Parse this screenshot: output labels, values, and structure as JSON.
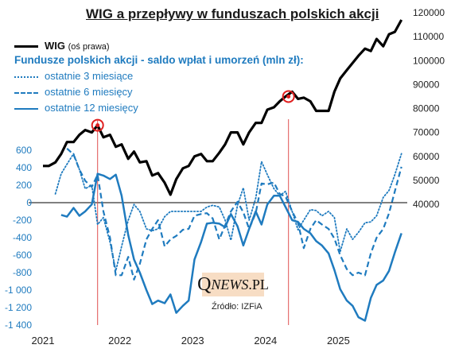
{
  "title": "WIG a przepływy w funduszach polskich akcji",
  "legend": {
    "wig_name": "WIG",
    "wig_note": "(oś prawa)",
    "funds_title": "Fundusze polskich akcji - saldo wpłat i umorzeń (mln zł):",
    "s3m": "ostatnie 3 miesiące",
    "s6m": "ostatnie 6 miesięcy",
    "s12m": "ostatnie 12 miesięcy"
  },
  "watermark": {
    "q": "Q",
    "news": "NEWS",
    "pl": ".PL"
  },
  "source": "Źródło: IZFiA",
  "colors": {
    "wig": "#000000",
    "funds": "#1f7bbf",
    "marker": "#e02020",
    "vline": "#e05050"
  },
  "chart_data": {
    "type": "line",
    "x_ticks": [
      "2021",
      "2022",
      "2023",
      "2024",
      "2025"
    ],
    "x_tick_positions": [
      2021.0,
      2022.0,
      2023.0,
      2024.0,
      2025.0
    ],
    "xlim": [
      2021.0,
      2026.0
    ],
    "y_left": {
      "ticks": [
        "600",
        "400",
        "200",
        "0",
        "-200",
        "-400",
        "-600",
        "-800",
        "-1 000",
        "-1 200",
        "-1 400"
      ],
      "ylim": [
        -1400,
        600
      ]
    },
    "y_right": {
      "ticks": [
        "120000",
        "110000",
        "100000",
        "90000",
        "80000",
        "70000",
        "60000",
        "50000",
        "40000"
      ],
      "ylim": [
        40000,
        120000
      ]
    },
    "vertical_markers_x": [
      2021.75,
      2024.37
    ],
    "series": [
      {
        "name": "WIG",
        "axis": "right",
        "style": "solid-black",
        "x": [
          2021.0,
          2021.08,
          2021.17,
          2021.25,
          2021.33,
          2021.42,
          2021.5,
          2021.58,
          2021.67,
          2021.75,
          2021.83,
          2021.92,
          2022.0,
          2022.08,
          2022.17,
          2022.25,
          2022.33,
          2022.42,
          2022.5,
          2022.58,
          2022.67,
          2022.75,
          2022.83,
          2022.92,
          2023.0,
          2023.08,
          2023.17,
          2023.25,
          2023.33,
          2023.42,
          2023.5,
          2023.58,
          2023.67,
          2023.75,
          2023.83,
          2023.92,
          2024.0,
          2024.08,
          2024.17,
          2024.25,
          2024.33,
          2024.42,
          2024.5,
          2024.58,
          2024.67,
          2024.75,
          2024.83,
          2024.92,
          2025.0,
          2025.08,
          2025.17,
          2025.25,
          2025.33,
          2025.42,
          2025.5,
          2025.58,
          2025.67,
          2025.75,
          2025.83,
          2025.92
        ],
        "values": [
          56000,
          56000,
          57500,
          61000,
          66000,
          66000,
          69000,
          71000,
          70000,
          73000,
          68000,
          69000,
          64000,
          65000,
          59000,
          62000,
          57500,
          58000,
          52000,
          53000,
          49000,
          44000,
          50500,
          55000,
          56000,
          60000,
          61000,
          58000,
          58000,
          61500,
          65000,
          70000,
          70000,
          65000,
          70000,
          74000,
          74000,
          79500,
          80500,
          83000,
          85000,
          87000,
          84000,
          84500,
          83000,
          79000,
          79000,
          79000,
          87000,
          92500,
          96000,
          99000,
          102000,
          105000,
          104000,
          109000,
          106000,
          111000,
          112000,
          117000
        ]
      },
      {
        "name": "ostatnie 3 miesiące",
        "axis": "left",
        "style": "dotted",
        "x": [
          2021.17,
          2021.25,
          2021.33,
          2021.42,
          2021.5,
          2021.58,
          2021.67,
          2021.75,
          2021.83,
          2021.92,
          2022.0,
          2022.08,
          2022.17,
          2022.25,
          2022.33,
          2022.42,
          2022.5,
          2022.58,
          2022.67,
          2022.75,
          2022.83,
          2022.92,
          2023.0,
          2023.08,
          2023.17,
          2023.25,
          2023.33,
          2023.42,
          2023.5,
          2023.58,
          2023.67,
          2023.75,
          2023.83,
          2023.92,
          2024.0,
          2024.08,
          2024.17,
          2024.25,
          2024.33,
          2024.42,
          2024.5,
          2024.58,
          2024.67,
          2024.75,
          2024.83,
          2024.92,
          2025.0,
          2025.08,
          2025.17,
          2025.25,
          2025.33,
          2025.42,
          2025.5,
          2025.58,
          2025.67,
          2025.75,
          2025.83,
          2025.92
        ],
        "values": [
          100,
          330,
          440,
          560,
          380,
          160,
          200,
          -250,
          -170,
          -450,
          -780,
          -500,
          -200,
          -20,
          -100,
          -300,
          -320,
          -300,
          -160,
          -100,
          -100,
          -100,
          -100,
          -100,
          -100,
          -50,
          -30,
          -50,
          -200,
          -430,
          -30,
          170,
          -200,
          50,
          470,
          320,
          160,
          80,
          130,
          -100,
          -310,
          -200,
          -80,
          -90,
          -150,
          -100,
          -170,
          -560,
          -300,
          -420,
          -340,
          -230,
          -220,
          -150,
          60,
          140,
          320,
          560
        ]
      },
      {
        "name": "ostatnie 6 miesięcy",
        "axis": "left",
        "style": "dashed",
        "x": [
          2021.33,
          2021.42,
          2021.5,
          2021.58,
          2021.67,
          2021.75,
          2021.83,
          2021.92,
          2022.0,
          2022.08,
          2022.17,
          2022.25,
          2022.33,
          2022.42,
          2022.5,
          2022.58,
          2022.67,
          2022.75,
          2022.83,
          2022.92,
          2023.0,
          2023.08,
          2023.17,
          2023.25,
          2023.33,
          2023.42,
          2023.5,
          2023.58,
          2023.67,
          2023.75,
          2023.83,
          2023.92,
          2024.0,
          2024.08,
          2024.17,
          2024.25,
          2024.33,
          2024.42,
          2024.5,
          2024.58,
          2024.67,
          2024.75,
          2024.83,
          2024.92,
          2025.0,
          2025.08,
          2025.17,
          2025.25,
          2025.33,
          2025.42,
          2025.5,
          2025.58,
          2025.67,
          2025.75,
          2025.83,
          2025.92
        ],
        "values": [
          620,
          550,
          380,
          250,
          180,
          320,
          -100,
          -400,
          -830,
          -830,
          -620,
          -880,
          -700,
          -420,
          -300,
          -200,
          -500,
          -420,
          -380,
          -310,
          -300,
          -150,
          -130,
          -120,
          -180,
          -420,
          -260,
          -100,
          10,
          -110,
          -300,
          -120,
          220,
          210,
          230,
          100,
          70,
          -100,
          -230,
          -520,
          -300,
          -200,
          -250,
          -300,
          -410,
          -600,
          -760,
          -830,
          -800,
          -830,
          -580,
          -400,
          -300,
          -120,
          130,
          410
        ]
      },
      {
        "name": "ostatnie 12 miesięcy",
        "axis": "left",
        "style": "solid-blue",
        "x": [
          2021.25,
          2021.33,
          2021.42,
          2021.5,
          2021.58,
          2021.67,
          2021.75,
          2021.83,
          2021.92,
          2022.0,
          2022.08,
          2022.17,
          2022.25,
          2022.33,
          2022.42,
          2022.5,
          2022.58,
          2022.67,
          2022.75,
          2022.83,
          2022.92,
          2023.0,
          2023.08,
          2023.17,
          2023.25,
          2023.33,
          2023.42,
          2023.5,
          2023.58,
          2023.67,
          2023.75,
          2023.83,
          2023.92,
          2024.0,
          2024.08,
          2024.17,
          2024.25,
          2024.33,
          2024.42,
          2024.5,
          2024.58,
          2024.67,
          2024.75,
          2024.83,
          2024.92,
          2025.0,
          2025.08,
          2025.17,
          2025.25,
          2025.33,
          2025.42,
          2025.5,
          2025.58,
          2025.67,
          2025.75,
          2025.83,
          2025.92
        ],
        "values": [
          -140,
          -160,
          -60,
          -150,
          -100,
          -20,
          330,
          310,
          270,
          320,
          80,
          -370,
          -650,
          -800,
          -1000,
          -1160,
          -1120,
          -1150,
          -1050,
          -1260,
          -1180,
          -1120,
          -650,
          -450,
          -240,
          -230,
          -240,
          -280,
          -130,
          -270,
          -490,
          -300,
          -100,
          -250,
          -20,
          80,
          80,
          -50,
          -200,
          -220,
          -300,
          -350,
          -440,
          -490,
          -580,
          -770,
          -990,
          -1120,
          -1180,
          -1310,
          -1350,
          -1090,
          -940,
          -890,
          -780,
          -570,
          -350
        ]
      }
    ]
  }
}
